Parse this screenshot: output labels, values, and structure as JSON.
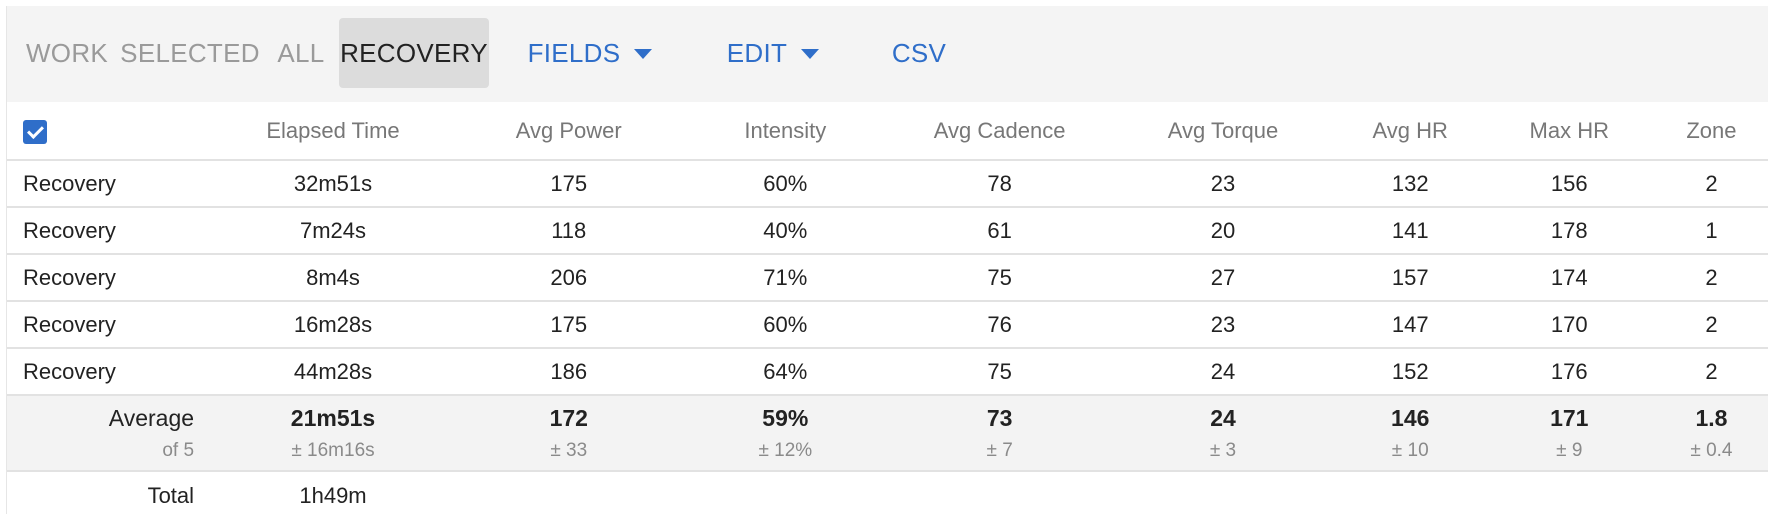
{
  "tabs": {
    "work": "WORK",
    "selected": "SELECTED",
    "all": "ALL",
    "recovery": "RECOVERY",
    "fields": "FIELDS",
    "edit": "EDIT",
    "csv": "CSV",
    "active": "RECOVERY"
  },
  "colors": {
    "link": "#2f6ec9",
    "toolbar_bg": "#f4f4f4",
    "active_tab_bg": "#dcdcdc"
  },
  "table": {
    "select_all_checked": true,
    "headers": [
      "Elapsed Time",
      "Avg Power",
      "Intensity",
      "Avg Cadence",
      "Avg Torque",
      "Avg HR",
      "Max HR",
      "Zone"
    ],
    "rows": [
      {
        "name": "Recovery",
        "values": [
          "32m51s",
          "175",
          "60%",
          "78",
          "23",
          "132",
          "156",
          "2"
        ]
      },
      {
        "name": "Recovery",
        "values": [
          "7m24s",
          "118",
          "40%",
          "61",
          "20",
          "141",
          "178",
          "1"
        ]
      },
      {
        "name": "Recovery",
        "values": [
          "8m4s",
          "206",
          "71%",
          "75",
          "27",
          "157",
          "174",
          "2"
        ]
      },
      {
        "name": "Recovery",
        "values": [
          "16m28s",
          "175",
          "60%",
          "76",
          "23",
          "147",
          "170",
          "2"
        ]
      },
      {
        "name": "Recovery",
        "values": [
          "44m28s",
          "186",
          "64%",
          "75",
          "24",
          "152",
          "176",
          "2"
        ]
      }
    ],
    "average": {
      "label": "Average",
      "sublabel": "of 5",
      "values": [
        "21m51s",
        "172",
        "59%",
        "73",
        "24",
        "146",
        "171",
        "1.8"
      ],
      "deviations": [
        "± 16m16s",
        "± 33",
        "± 12%",
        "± 7",
        "± 3",
        "± 10",
        "± 9",
        "± 0.4"
      ]
    },
    "total": {
      "label": "Total",
      "elapsed": "1h49m"
    }
  }
}
